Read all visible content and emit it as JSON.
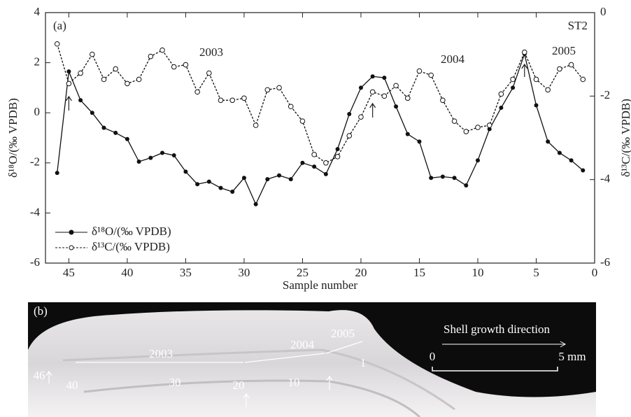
{
  "chart_data": {
    "type": "line",
    "x": [
      46,
      45,
      44,
      43,
      42,
      41,
      40,
      39,
      38,
      37,
      36,
      35,
      34,
      33,
      32,
      31,
      30,
      29,
      28,
      27,
      26,
      25,
      24,
      23,
      22,
      21,
      20,
      19,
      18,
      17,
      16,
      15,
      14,
      13,
      12,
      11,
      10,
      9,
      8,
      7,
      6,
      5,
      4,
      3,
      2,
      1
    ],
    "xlabel": "Sample number",
    "ylabel": "δ¹⁸O/(‰ VPDB)",
    "y2label": "δ¹³C/(‰ VPDB)",
    "xlim": [
      47,
      0
    ],
    "xticks": [
      45,
      40,
      35,
      30,
      25,
      20,
      15,
      10,
      5,
      0
    ],
    "ylim": [
      -6,
      4
    ],
    "yticks": [
      -6,
      -4,
      -2,
      0,
      2,
      4
    ],
    "y2lim": [
      -6,
      0
    ],
    "y2ticks": [
      -6,
      -4,
      -2,
      0
    ],
    "series": [
      {
        "name": "δ¹⁸O/(‰ VPDB)",
        "color": "#111",
        "dashed": false,
        "marker": "filled",
        "values": [
          -2.4,
          1.65,
          0.5,
          0,
          -0.6,
          -0.8,
          -1.05,
          -1.95,
          -1.8,
          -1.6,
          -1.7,
          -2.35,
          -2.85,
          -2.75,
          -3.0,
          -3.15,
          -2.6,
          -3.65,
          -2.65,
          -2.5,
          -2.65,
          -2.0,
          -2.15,
          -2.45,
          -1.45,
          -0.05,
          1.0,
          1.45,
          1.4,
          0.25,
          -0.85,
          -1.15,
          -2.6,
          -2.55,
          -2.6,
          -2.9,
          -1.9,
          -0.65,
          0.2,
          1.0,
          2.35,
          0.3,
          -1.15,
          -1.6,
          -1.9,
          -2.3
        ]
      },
      {
        "name": "δ¹³C/(‰ VPDB)",
        "color": "#111",
        "dashed": true,
        "marker": "open",
        "axis": "y2",
        "values": [
          -0.75,
          -1.7,
          -1.45,
          -1.0,
          -1.6,
          -1.35,
          -1.7,
          -1.6,
          -1.05,
          -0.9,
          -1.3,
          -1.25,
          -1.9,
          -1.45,
          -2.1,
          -2.1,
          -2.05,
          -2.7,
          -1.85,
          -1.8,
          -2.25,
          -2.6,
          -3.4,
          -3.6,
          -3.45,
          -2.95,
          -2.5,
          -1.9,
          -2.0,
          -1.75,
          -2.05,
          -1.4,
          -1.5,
          -2.1,
          -2.6,
          -2.85,
          -2.75,
          -2.7,
          -1.95,
          -1.6,
          -0.95,
          -1.6,
          -1.85,
          -1.35,
          -1.25,
          -1.6
        ]
      }
    ],
    "annotations": [
      "(a)",
      "ST2",
      "2003",
      "2004",
      "2005"
    ],
    "legend": "lower left"
  },
  "photo": {
    "label": "(b)",
    "direction": "Shell growth direction",
    "scale_start": "0",
    "scale_end": "5 mm",
    "years": [
      "2003",
      "2004",
      "2005"
    ],
    "samples": [
      "46",
      "40",
      "30",
      "20",
      "10",
      "1"
    ]
  }
}
